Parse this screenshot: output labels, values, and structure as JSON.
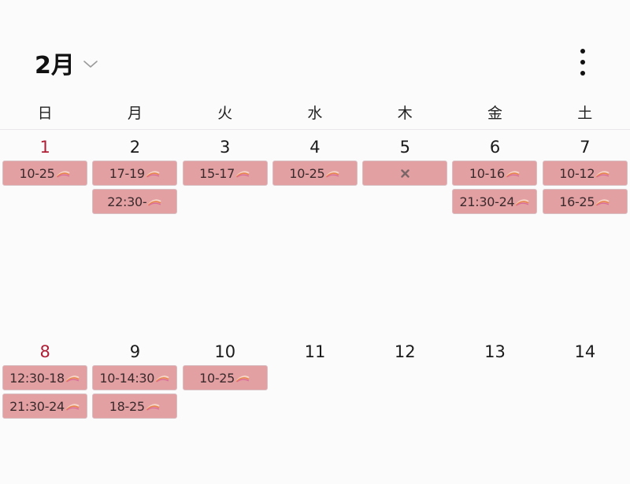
{
  "header": {
    "month_title": "2月"
  },
  "weekdays": [
    "日",
    "月",
    "火",
    "水",
    "木",
    "金",
    "土"
  ],
  "weeks": [
    {
      "days": [
        {
          "number": "1",
          "sunday": true,
          "events": [
            {
              "label": "10-25",
              "icon": "sushi-icon"
            }
          ]
        },
        {
          "number": "2",
          "events": [
            {
              "label": "17-19",
              "icon": "sushi-icon"
            },
            {
              "label": "22:30-",
              "icon": "sushi-icon"
            }
          ]
        },
        {
          "number": "3",
          "events": [
            {
              "label": "15-17",
              "icon": "sushi-icon"
            }
          ]
        },
        {
          "number": "4",
          "events": [
            {
              "label": "10-25",
              "icon": "sushi-icon"
            }
          ]
        },
        {
          "number": "5",
          "events": [
            {
              "label": "",
              "icon": "cross-icon"
            }
          ]
        },
        {
          "number": "6",
          "events": [
            {
              "label": "10-16",
              "icon": "sushi-icon"
            },
            {
              "label": "21:30-24",
              "icon": "sushi-icon"
            }
          ]
        },
        {
          "number": "7",
          "events": [
            {
              "label": "10-12",
              "icon": "sushi-icon"
            },
            {
              "label": "16-25",
              "icon": "sushi-icon"
            }
          ]
        }
      ]
    },
    {
      "days": [
        {
          "number": "8",
          "sunday": true,
          "events": [
            {
              "label": "12:30-18",
              "icon": "sushi-icon"
            },
            {
              "label": "21:30-24",
              "icon": "sushi-icon"
            }
          ]
        },
        {
          "number": "9",
          "events": [
            {
              "label": "10-14:30",
              "icon": "sushi-icon"
            },
            {
              "label": "18-25",
              "icon": "sushi-icon"
            }
          ]
        },
        {
          "number": "10",
          "events": [
            {
              "label": "10-25",
              "icon": "sushi-icon"
            }
          ]
        },
        {
          "number": "11",
          "events": []
        },
        {
          "number": "12",
          "events": []
        },
        {
          "number": "13",
          "events": []
        },
        {
          "number": "14",
          "events": []
        }
      ]
    }
  ],
  "colors": {
    "event_bg": "#e3a0a3",
    "sunday": "#b01e35",
    "text": "#1a1a1a"
  },
  "icons": {
    "menu": "more-vertical-icon",
    "dropdown": "chevron-down-icon"
  }
}
